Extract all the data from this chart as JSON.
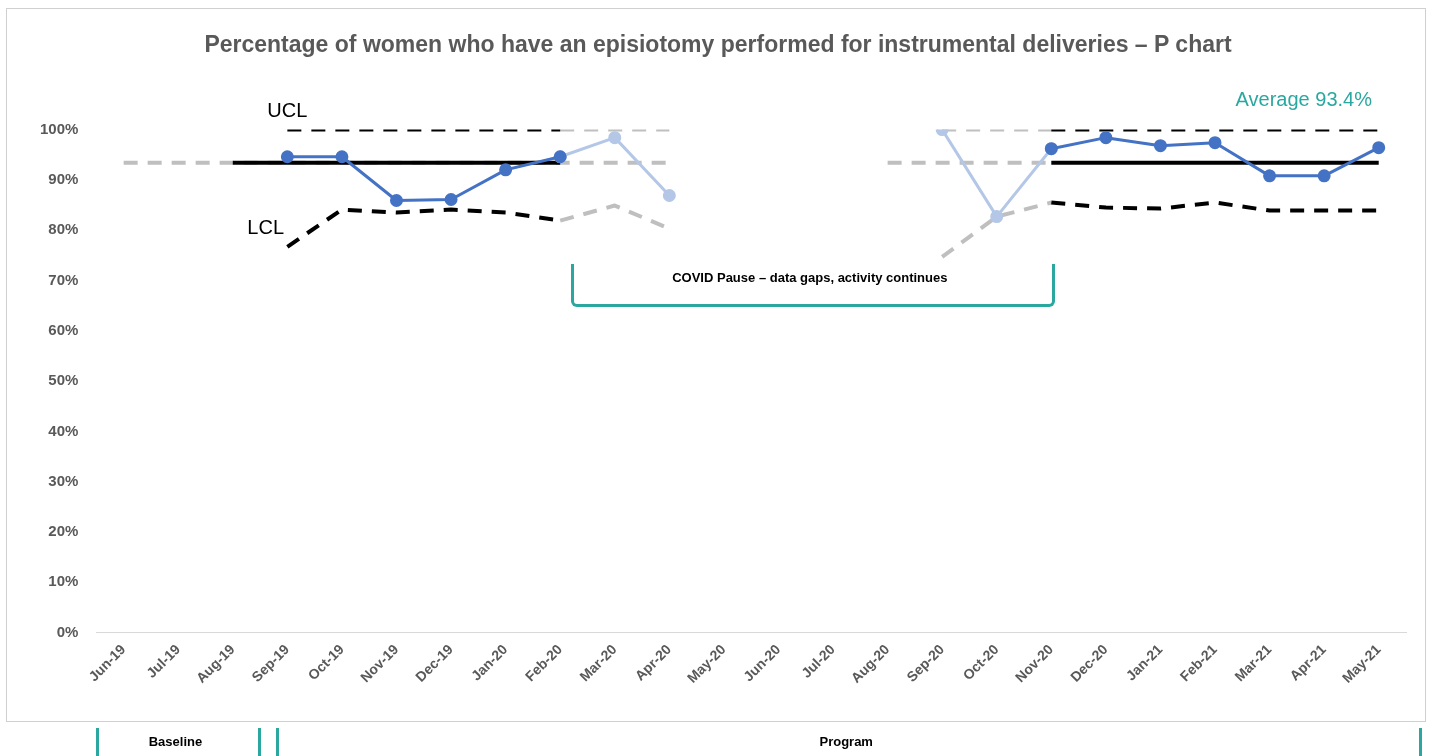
{
  "chart_data": {
    "type": "line",
    "title": "Percentage of women who have an episiotomy performed for instrumental deliveries – P chart",
    "categories": [
      "Jun-19",
      "Jul-19",
      "Aug-19",
      "Sep-19",
      "Oct-19",
      "Nov-19",
      "Dec-19",
      "Jan-20",
      "Feb-20",
      "Mar-20",
      "Apr-20",
      "May-20",
      "Jun-20",
      "Jul-20",
      "Aug-20",
      "Sep-20",
      "Oct-20",
      "Nov-20",
      "Dec-20",
      "Jan-21",
      "Feb-21",
      "Mar-21",
      "Apr-21",
      "May-21"
    ],
    "series": [
      {
        "color": "#bfbfbf",
        "line_style": "dashed",
        "marker": "none",
        "values": [
          93.4,
          93.4,
          93.4,
          93.4,
          93.4,
          93.4,
          93.4,
          93.4,
          93.4,
          93.4,
          93.4,
          null,
          null,
          null,
          93.4,
          93.4,
          93.4,
          93.4,
          null,
          null,
          null,
          null,
          null,
          null
        ]
      },
      {
        "color": "#bfbfbf",
        "line_style": "dashed",
        "marker": "none",
        "values": [
          null,
          null,
          null,
          null,
          null,
          null,
          null,
          null,
          100,
          100,
          100,
          null,
          null,
          null,
          null,
          100,
          100,
          100,
          null,
          null,
          null,
          null,
          null,
          null
        ]
      },
      {
        "color": "#bfbfbf",
        "line_style": "dashed",
        "marker": "none",
        "values": [
          null,
          null,
          null,
          null,
          null,
          null,
          null,
          null,
          81.9,
          84.9,
          80.3,
          null,
          null,
          null,
          null,
          74.7,
          82.7,
          85.5,
          null,
          null,
          null,
          null,
          null,
          null
        ]
      },
      {
        "color": "#000000",
        "line_style": "solid",
        "marker": "none",
        "values": [
          null,
          null,
          93.4,
          93.4,
          93.4,
          93.4,
          93.4,
          93.4,
          93.4,
          null,
          null,
          null,
          null,
          null,
          null,
          null,
          null,
          93.4,
          93.4,
          93.4,
          93.4,
          93.4,
          93.4,
          93.4
        ]
      },
      {
        "color": "#000000",
        "line_style": "dashed",
        "marker": "none",
        "values": [
          null,
          null,
          null,
          100,
          100,
          100,
          100,
          100,
          100,
          null,
          null,
          null,
          null,
          null,
          null,
          null,
          null,
          100,
          100,
          100,
          100,
          100,
          100,
          100
        ]
      },
      {
        "color": "#000000",
        "line_style": "dashed",
        "marker": "none",
        "values": [
          null,
          null,
          null,
          76.7,
          84.1,
          83.5,
          84.1,
          83.5,
          81.9,
          null,
          null,
          null,
          null,
          null,
          null,
          null,
          null,
          85.5,
          84.5,
          84.3,
          85.5,
          83.9,
          83.9,
          83.9
        ]
      },
      {
        "color": "#b4c7e7",
        "line_style": "solid",
        "marker": "circle",
        "values": [
          null,
          null,
          null,
          null,
          null,
          null,
          null,
          null,
          94.6,
          98.4,
          86.9,
          null,
          null,
          null,
          null,
          100,
          82.7,
          96.2,
          null,
          null,
          null,
          null,
          null,
          null
        ]
      },
      {
        "color": "#4472c4",
        "line_style": "solid",
        "marker": "circle",
        "values": [
          null,
          null,
          null,
          94.6,
          94.6,
          85.9,
          86.1,
          92.0,
          94.6,
          null,
          null,
          null,
          null,
          null,
          null,
          null,
          null,
          96.2,
          98.4,
          96.8,
          97.4,
          90.8,
          90.8,
          96.4
        ]
      }
    ],
    "ylim": [
      0,
      100
    ],
    "yticks": [
      {
        "value": 0,
        "label": "0%"
      },
      {
        "value": 10,
        "label": "10%"
      },
      {
        "value": 20,
        "label": "20%"
      },
      {
        "value": 30,
        "label": "30%"
      },
      {
        "value": 40,
        "label": "40%"
      },
      {
        "value": 50,
        "label": "50%"
      },
      {
        "value": 60,
        "label": "60%"
      },
      {
        "value": 70,
        "label": "70%"
      },
      {
        "value": 80,
        "label": "80%"
      },
      {
        "value": 90,
        "label": "90%"
      },
      {
        "value": 100,
        "label": "100%"
      }
    ],
    "grid": false,
    "legend": false,
    "annotations": [
      {
        "text": "UCL",
        "x": "Sep-19",
        "y": 100
      },
      "LCL",
      "Average 93.4%",
      "COVID Pause – data gaps, activity continues",
      "Baseline",
      "Program"
    ]
  }
}
